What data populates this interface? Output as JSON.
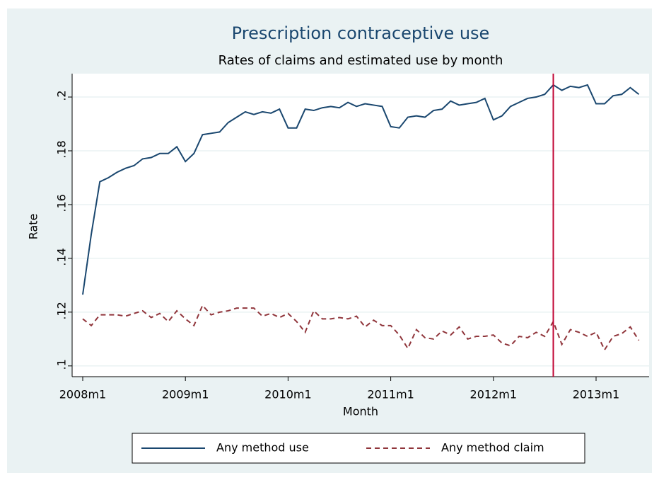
{
  "chart_data": {
    "type": "line",
    "title": "Prescription contraceptive use",
    "subtitle": "Rates of claims and estimated use by month",
    "x_label": "Month",
    "y_label": "Rate",
    "categories": [
      "2008m1",
      null,
      null,
      null,
      null,
      null,
      null,
      null,
      null,
      null,
      null,
      null,
      "2009m1",
      null,
      null,
      null,
      null,
      null,
      null,
      null,
      null,
      null,
      null,
      null,
      "2010m1",
      null,
      null,
      null,
      null,
      null,
      null,
      null,
      null,
      null,
      null,
      null,
      "2011m1",
      null,
      null,
      null,
      null,
      null,
      null,
      null,
      null,
      null,
      null,
      null,
      "2012m1",
      null,
      null,
      null,
      null,
      null,
      null,
      null,
      null,
      null,
      null,
      null,
      "2013m1",
      null,
      null,
      null,
      null,
      null
    ],
    "series": [
      {
        "name": "Any method use",
        "color": "#1a476f",
        "dash": "solid",
        "values": [
          0.1265,
          0.149,
          0.1685,
          0.17,
          0.172,
          0.1735,
          0.1745,
          0.177,
          0.1775,
          0.179,
          0.179,
          0.1815,
          0.176,
          0.179,
          0.186,
          0.1865,
          0.187,
          0.1905,
          0.1925,
          0.1945,
          0.1935,
          0.1945,
          0.194,
          0.1955,
          0.1885,
          0.1885,
          0.1955,
          0.195,
          0.196,
          0.1965,
          0.196,
          0.198,
          0.1965,
          0.1975,
          0.197,
          0.1965,
          0.189,
          0.1885,
          0.1925,
          0.193,
          0.1925,
          0.195,
          0.1955,
          0.1985,
          0.197,
          0.1975,
          0.198,
          0.1995,
          0.1915,
          0.193,
          0.1965,
          0.198,
          0.1995,
          0.2,
          0.201,
          0.2045,
          0.2025,
          0.204,
          0.2035,
          0.2045,
          0.1975,
          0.1975,
          0.2005,
          0.201,
          0.2035,
          0.201
        ]
      },
      {
        "name": "Any method claim",
        "color": "#90353b",
        "dash": "dashed",
        "values": [
          0.1175,
          0.115,
          0.119,
          0.119,
          0.119,
          0.1185,
          0.1195,
          0.1205,
          0.118,
          0.1195,
          0.1165,
          0.1205,
          0.1175,
          0.115,
          0.1225,
          0.119,
          0.12,
          0.1205,
          0.1215,
          0.1215,
          0.1215,
          0.1185,
          0.1195,
          0.118,
          0.1195,
          0.1165,
          0.1125,
          0.1205,
          0.1175,
          0.1175,
          0.118,
          0.1175,
          0.1185,
          0.1145,
          0.117,
          0.115,
          0.115,
          0.1115,
          0.1065,
          0.1135,
          0.1105,
          0.11,
          0.113,
          0.1115,
          0.1145,
          0.11,
          0.111,
          0.111,
          0.1115,
          0.1085,
          0.1075,
          0.111,
          0.1105,
          0.1125,
          0.111,
          0.1165,
          0.108,
          0.1135,
          0.1125,
          0.111,
          0.1125,
          0.106,
          0.111,
          0.112,
          0.1145,
          0.1095
        ]
      }
    ],
    "reference_line": {
      "category_index": 55,
      "color": "#c10534"
    },
    "ylim": [
      0.096,
      0.2087
    ],
    "yticks": [
      {
        "value": 0.1,
        "label": ".1"
      },
      {
        "value": 0.12,
        "label": ".12"
      },
      {
        "value": 0.14,
        "label": ".14"
      },
      {
        "value": 0.16,
        "label": ".16"
      },
      {
        "value": 0.18,
        "label": ".18"
      },
      {
        "value": 0.2,
        "label": ".2"
      }
    ],
    "grid": true,
    "legend": "bottom"
  }
}
